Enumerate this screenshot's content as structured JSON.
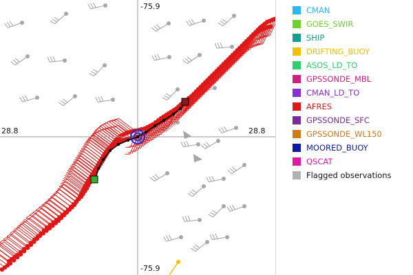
{
  "map": {
    "axis_labels": {
      "top": "-75.9",
      "bottom": "-75.9",
      "left": "28.8",
      "right": "28.8"
    },
    "marker_icons": {
      "center": "storm-center-marker",
      "start": "track-start-square",
      "end": "track-end-square"
    }
  },
  "legend": {
    "items": [
      {
        "label": "CMAN",
        "color": "#2db7f5"
      },
      {
        "label": "GOES_SWIR",
        "color": "#6fd12b"
      },
      {
        "label": "SHIP",
        "color": "#149e8e"
      },
      {
        "label": "DRIFTING_BUOY",
        "color": "#f2c200"
      },
      {
        "label": "ASOS_LD_TO",
        "color": "#2fcf6d"
      },
      {
        "label": "GPSSONDE_MBL",
        "color": "#d21f82"
      },
      {
        "label": "CMAN_LD_TO",
        "color": "#8a2fd6"
      },
      {
        "label": "AFRES",
        "color": "#e01717"
      },
      {
        "label": "GPSSONDE_SFC",
        "color": "#7a2a9a"
      },
      {
        "label": "GPSSONDE_WL150",
        "color": "#d07a18"
      },
      {
        "label": "MOORED_BUOY",
        "color": "#0b1aa0"
      },
      {
        "label": "QSCAT",
        "color": "#e11aa6"
      },
      {
        "label": "Flagged observations",
        "color": "#b2b2b2"
      }
    ]
  }
}
